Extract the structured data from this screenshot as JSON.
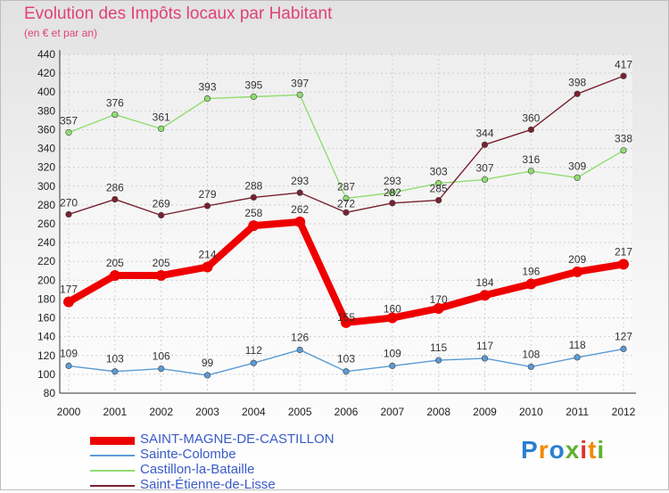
{
  "chart_data": {
    "type": "line",
    "title": "Evolution des Impôts locaux par Habitant",
    "subtitle": "(en € et par an)",
    "x": [
      "2000",
      "2001",
      "2002",
      "2003",
      "2004",
      "2005",
      "2006",
      "2007",
      "2008",
      "2009",
      "2010",
      "2011",
      "2012"
    ],
    "ylim": [
      80,
      440
    ],
    "ytick_step": 20,
    "ytick_labels": [
      "80",
      "100",
      "120",
      "140",
      "160",
      "180",
      "200",
      "220",
      "240",
      "260",
      "280",
      "300",
      "320",
      "340",
      "360",
      "380",
      "400",
      "420",
      "440"
    ],
    "grid": true,
    "legend_position": "bottom-left",
    "series": [
      {
        "name": "SAINT-MAGNE-DE-CASTILLON",
        "color": "#ee0000",
        "highlight": true,
        "values": [
          177,
          205,
          205,
          214,
          258,
          262,
          155,
          160,
          170,
          184,
          196,
          209,
          217
        ]
      },
      {
        "name": "Sainte-Colombe",
        "color": "#5b9bd5",
        "values": [
          109,
          103,
          106,
          99,
          112,
          126,
          103,
          109,
          115,
          117,
          108,
          118,
          127
        ]
      },
      {
        "name": "Castillon-la-Bataille",
        "color": "#90dd70",
        "values": [
          357,
          376,
          361,
          393,
          395,
          397,
          287,
          293,
          303,
          307,
          316,
          309,
          338
        ]
      },
      {
        "name": "Saint-Étienne-de-Lisse",
        "color": "#7a2030",
        "values": [
          270,
          286,
          269,
          279,
          288,
          293,
          272,
          282,
          285,
          344,
          360,
          398,
          417
        ]
      }
    ]
  },
  "logo": {
    "text": "Proxiti",
    "letters": [
      {
        "ch": "P",
        "color": "#2a7fd0"
      },
      {
        "ch": "r",
        "color": "#f08a00"
      },
      {
        "ch": "o",
        "color": "#2a7fd0"
      },
      {
        "ch": "x",
        "color": "#60b030"
      },
      {
        "ch": "i",
        "color": "#e03030"
      },
      {
        "ch": "t",
        "color": "#f08a00"
      },
      {
        "ch": "i",
        "color": "#60b030"
      }
    ]
  }
}
